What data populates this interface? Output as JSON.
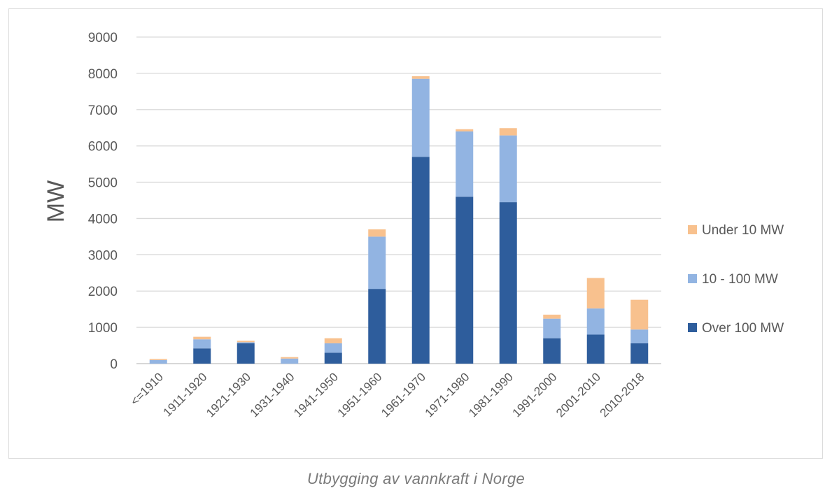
{
  "chart_data": {
    "type": "bar",
    "stacked": true,
    "categories": [
      "<=1910",
      "1911-1920",
      "1921-1930",
      "1931-1940",
      "1941-1950",
      "1951-1960",
      "1961-1970",
      "1971-1980",
      "1981-1990",
      "1991-2000",
      "2001-2010",
      "2010-2018"
    ],
    "series": [
      {
        "name": "Over 100 MW",
        "color": "#2e5d9c",
        "values": [
          0,
          420,
          560,
          0,
          300,
          2060,
          5700,
          4600,
          4450,
          700,
          800,
          560
        ]
      },
      {
        "name": "10 - 100 MW",
        "color": "#92b4e2",
        "values": [
          100,
          250,
          30,
          140,
          260,
          1440,
          2150,
          1800,
          1840,
          540,
          720,
          380
        ]
      },
      {
        "name": "Under 10 MW",
        "color": "#f8c18e",
        "values": [
          30,
          70,
          40,
          40,
          140,
          200,
          70,
          60,
          200,
          110,
          840,
          820
        ]
      }
    ],
    "legend_order": [
      "Under 10 MW",
      "10 - 100 MW",
      "Over 100 MW"
    ],
    "legend_position": "right",
    "ylabel": "MW",
    "xlabel": "",
    "ylim": [
      0,
      9000
    ],
    "yticks": [
      0,
      1000,
      2000,
      3000,
      4000,
      5000,
      6000,
      7000,
      8000,
      9000
    ],
    "grid": true
  },
  "caption": "Utbygging av vannkraft i Norge"
}
